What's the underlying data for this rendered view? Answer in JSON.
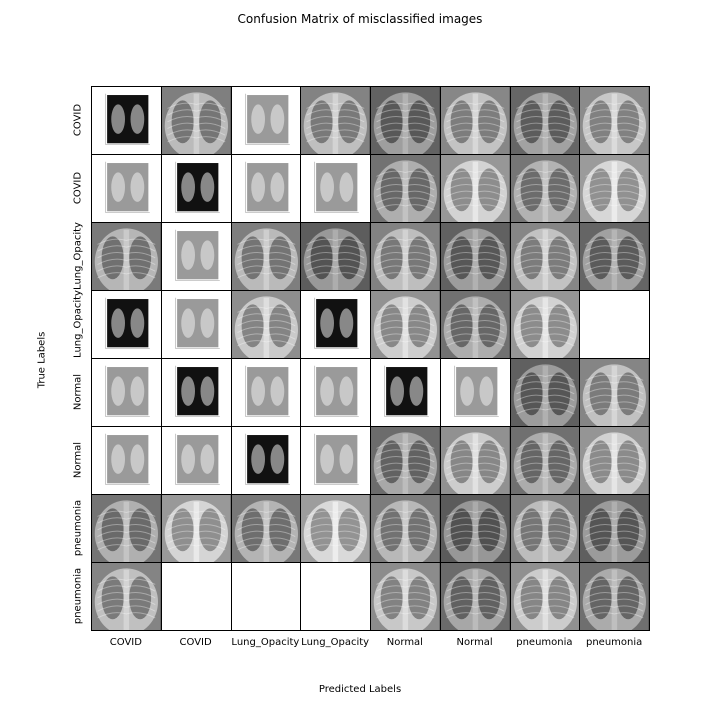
{
  "chart_data": {
    "type": "table",
    "title": "Confusion Matrix of misclassified images",
    "xlabel": "Predicted Labels",
    "ylabel": "True Labels",
    "row_labels": [
      "COVID",
      "COVID",
      "Lung_Opacity",
      "Lung_Opacity",
      "Normal",
      "Normal",
      "pneumonia",
      "pneumonia"
    ],
    "col_labels": [
      "COVID",
      "COVID",
      "Lung_Opacity",
      "Lung_Opacity",
      "Normal",
      "Normal",
      "pneumonia",
      "pneumonia"
    ],
    "cells": [
      [
        "document",
        "xray",
        "document",
        "xray",
        "xray",
        "xray",
        "xray",
        "xray"
      ],
      [
        "document",
        "document",
        "document",
        "document",
        "xray",
        "xray",
        "xray",
        "xray"
      ],
      [
        "xray",
        "document",
        "xray",
        "xray",
        "xray",
        "xray",
        "xray",
        "xray"
      ],
      [
        "document",
        "document",
        "xray",
        "document",
        "xray",
        "xray",
        "xray",
        "empty"
      ],
      [
        "document",
        "document",
        "document",
        "document",
        "document",
        "document",
        "xray",
        "xray"
      ],
      [
        "document",
        "document",
        "document",
        "document",
        "xray",
        "xray",
        "xray",
        "xray"
      ],
      [
        "xray",
        "xray",
        "xray",
        "xray",
        "xray",
        "xray",
        "xray",
        "xray"
      ],
      [
        "xray",
        "empty",
        "empty",
        "empty",
        "xray",
        "xray",
        "xray",
        "xray"
      ]
    ]
  }
}
